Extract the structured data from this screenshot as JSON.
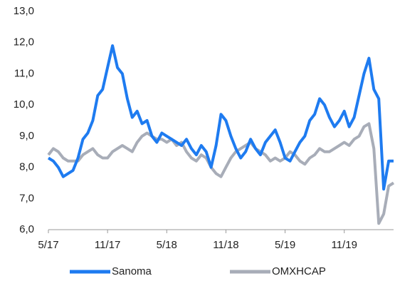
{
  "chart_data": {
    "type": "line",
    "categories": [
      "5/17",
      null,
      null,
      null,
      null,
      null,
      null,
      null,
      null,
      null,
      null,
      null,
      "11/17",
      null,
      null,
      null,
      null,
      null,
      null,
      null,
      null,
      null,
      null,
      null,
      "5/18",
      null,
      null,
      null,
      null,
      null,
      null,
      null,
      null,
      null,
      null,
      null,
      "11/18",
      null,
      null,
      null,
      null,
      null,
      null,
      null,
      null,
      null,
      null,
      null,
      "5/19",
      null,
      null,
      null,
      null,
      null,
      null,
      null,
      null,
      null,
      null,
      null,
      "11/19",
      null,
      null,
      null,
      null,
      null,
      null,
      null,
      null,
      null,
      null
    ],
    "series": [
      {
        "name": "Sanoma",
        "color": "#1e7bf0",
        "values": [
          8.3,
          8.2,
          8.0,
          7.7,
          7.8,
          7.9,
          8.3,
          8.9,
          9.1,
          9.5,
          10.3,
          10.5,
          11.2,
          11.9,
          11.2,
          11.0,
          10.2,
          9.6,
          9.8,
          9.4,
          9.5,
          9.0,
          8.8,
          9.1,
          9.0,
          8.9,
          8.8,
          8.7,
          8.9,
          8.6,
          8.4,
          8.7,
          8.5,
          8.0,
          8.7,
          9.7,
          9.5,
          9.0,
          8.6,
          8.3,
          8.5,
          8.9,
          8.6,
          8.4,
          8.8,
          9.0,
          9.2,
          8.8,
          8.3,
          8.2,
          8.5,
          8.8,
          9.0,
          9.5,
          9.7,
          10.2,
          10.0,
          9.6,
          9.3,
          9.5,
          9.8,
          9.3,
          9.6,
          10.3,
          11.0,
          11.5,
          10.5,
          10.2,
          7.3,
          8.2,
          8.2
        ]
      },
      {
        "name": "OMXHCAP",
        "color": "#a8adb8",
        "values": [
          8.4,
          8.6,
          8.5,
          8.3,
          8.2,
          8.2,
          8.2,
          8.4,
          8.5,
          8.6,
          8.4,
          8.3,
          8.3,
          8.5,
          8.6,
          8.7,
          8.6,
          8.5,
          8.8,
          9.0,
          9.1,
          9.0,
          8.9,
          8.9,
          8.8,
          8.9,
          8.7,
          8.8,
          8.5,
          8.3,
          8.2,
          8.4,
          8.3,
          8.0,
          7.8,
          7.7,
          8.0,
          8.3,
          8.5,
          8.6,
          8.7,
          8.8,
          8.6,
          8.5,
          8.4,
          8.2,
          8.3,
          8.2,
          8.3,
          8.5,
          8.4,
          8.2,
          8.1,
          8.3,
          8.4,
          8.6,
          8.5,
          8.5,
          8.6,
          8.7,
          8.8,
          8.7,
          8.9,
          9.0,
          9.3,
          9.4,
          8.6,
          6.2,
          6.5,
          7.4,
          7.5
        ]
      }
    ],
    "ylim": [
      6.0,
      13.0
    ],
    "yticks": [
      {
        "value": 6.0,
        "label": "6,0"
      },
      {
        "value": 7.0,
        "label": "7,0"
      },
      {
        "value": 8.0,
        "label": "8,0"
      },
      {
        "value": 9.0,
        "label": "9,0"
      },
      {
        "value": 10.0,
        "label": "10,0"
      },
      {
        "value": 11.0,
        "label": "11,0"
      },
      {
        "value": 12.0,
        "label": "12,0"
      },
      {
        "value": 13.0,
        "label": "13,0"
      }
    ],
    "grid": false,
    "legend": "bottom"
  }
}
